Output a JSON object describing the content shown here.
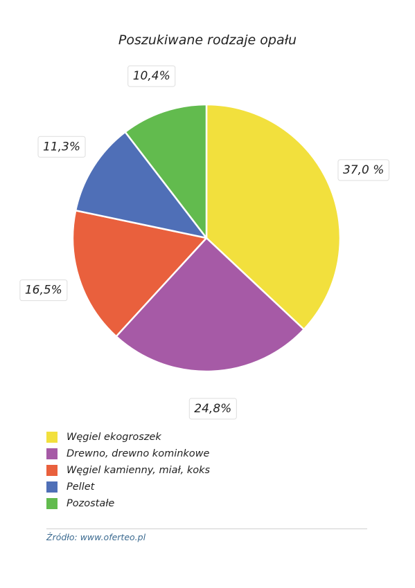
{
  "chart_data": {
    "type": "pie",
    "title": "Poszukiwane rodzaje opału",
    "slices": [
      {
        "label": "Węgiel ekogroszek",
        "value": 37.0,
        "value_label": "37,0 %",
        "color": "#f2e03d"
      },
      {
        "label": "Drewno, drewno kominkowe",
        "value": 24.8,
        "value_label": "24,8%",
        "color": "#a65aa6"
      },
      {
        "label": "Węgiel kamienny, miał, koks",
        "value": 16.5,
        "value_label": "16,5%",
        "color": "#e9603d"
      },
      {
        "label": "Pellet",
        "value": 11.3,
        "value_label": "11,3%",
        "color": "#4f6fb7"
      },
      {
        "label": "Pozostałe",
        "value": 10.4,
        "value_label": "10,4%",
        "color": "#62bb4e"
      }
    ],
    "start_angle_deg": 0,
    "direction": "clockwise",
    "legend_position": "bottom-left"
  },
  "source_text": "Źródło: www.oferteo.pl"
}
